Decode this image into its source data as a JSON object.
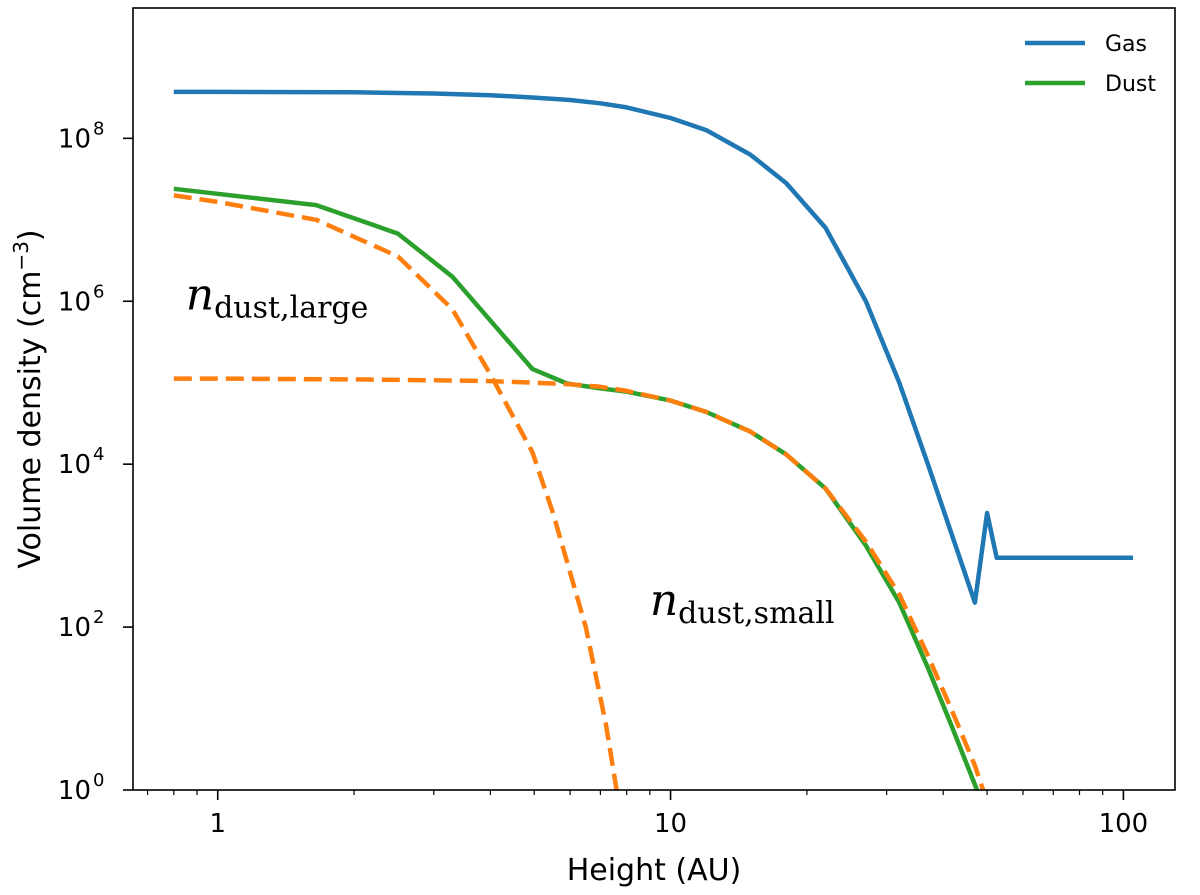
{
  "chart_data": {
    "type": "line",
    "x_scale": "log",
    "y_scale": "log",
    "xlabel": "Height (AU)",
    "ylabel_main": "Volume density (cm",
    "ylabel_sup": "−3",
    "ylabel_close": ")",
    "xlim": [
      0.65,
      130
    ],
    "ylim_exp": [
      0,
      9.6
    ],
    "x_major_ticks": [
      {
        "value": 1,
        "label": "1"
      },
      {
        "value": 10,
        "label": "10"
      },
      {
        "value": 100,
        "label": "100"
      }
    ],
    "y_major_ticks": [
      {
        "exp": 0,
        "base": "10",
        "sup": "0"
      },
      {
        "exp": 2,
        "base": "10",
        "sup": "2"
      },
      {
        "exp": 4,
        "base": "10",
        "sup": "4"
      },
      {
        "exp": 6,
        "base": "10",
        "sup": "6"
      },
      {
        "exp": 8,
        "base": "10",
        "sup": "8"
      }
    ],
    "series": [
      {
        "name": "Gas",
        "color": "#1f77b4",
        "dash": "solid",
        "in_legend": true,
        "x": [
          0.8,
          1,
          2,
          3,
          4,
          5,
          6,
          7,
          8,
          10,
          12,
          15,
          18,
          22,
          27,
          32,
          37,
          42,
          47,
          50,
          52.5,
          60,
          80,
          105
        ],
        "y_exp": [
          8.57,
          8.57,
          8.565,
          8.55,
          8.53,
          8.5,
          8.47,
          8.43,
          8.38,
          8.25,
          8.1,
          7.8,
          7.45,
          6.9,
          6.0,
          5.0,
          4.0,
          3.1,
          2.3,
          3.4,
          2.85,
          2.85,
          2.85,
          2.85
        ]
      },
      {
        "name": "Dust",
        "color": "#2ca02c",
        "dash": "solid",
        "in_legend": true,
        "x": [
          0.8,
          1.65,
          2.5,
          3.3,
          4.95,
          5.9,
          7,
          8,
          10,
          12,
          15,
          18,
          22,
          27,
          32,
          37,
          42,
          47.5
        ],
        "y_exp": [
          7.38,
          7.18,
          6.83,
          6.3,
          5.17,
          4.99,
          4.93,
          4.89,
          4.78,
          4.64,
          4.4,
          4.12,
          3.7,
          3.0,
          2.3,
          1.5,
          0.75,
          0.0
        ]
      },
      {
        "name": "",
        "color": "#ff7f0e",
        "dash": "dashed",
        "in_legend": false,
        "x": [
          0.8,
          1,
          1.65,
          2.5,
          3.3,
          4,
          4.95,
          5.5,
          6.5,
          7.2,
          7.6
        ],
        "y_exp": [
          7.3,
          7.22,
          7.0,
          6.55,
          5.9,
          5.1,
          4.15,
          3.4,
          2.0,
          0.8,
          0.0
        ]
      },
      {
        "name": "",
        "color": "#ff7f0e",
        "dash": "dashed",
        "in_legend": false,
        "x": [
          0.8,
          1,
          2,
          3,
          4,
          5,
          6,
          7,
          8,
          10,
          12,
          15,
          18,
          22,
          27,
          32,
          37,
          42,
          47,
          49
        ],
        "y_exp": [
          5.05,
          5.05,
          5.04,
          5.03,
          5.02,
          5.0,
          4.98,
          4.95,
          4.9,
          4.78,
          4.64,
          4.4,
          4.12,
          3.7,
          3.05,
          2.4,
          1.65,
          0.95,
          0.3,
          0.0
        ]
      }
    ],
    "legend": {
      "placement": "top-right",
      "entries": [
        {
          "label": "Gas",
          "color": "#1f77b4"
        },
        {
          "label": "Dust",
          "color": "#2ca02c"
        }
      ]
    },
    "annotations": [
      {
        "id": "large",
        "main": "n",
        "sub": "dust,large",
        "x": 0.85,
        "y_exp": 5.9
      },
      {
        "id": "small",
        "main": "n",
        "sub": "dust,small",
        "x": 9.0,
        "y_exp": 2.15
      }
    ]
  }
}
